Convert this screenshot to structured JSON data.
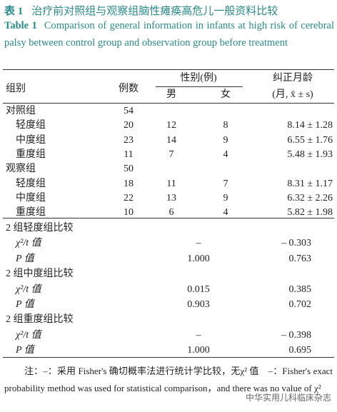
{
  "header": {
    "label": "表 1",
    "title": "治疗前对照组与观察组脑性瘫痪高危儿一般资料比较",
    "english_label": "Table 1",
    "english_title": "Comparison of general information in infants at high risk of cerebral palsy between control group and observation group before treatment"
  },
  "table": {
    "columns": {
      "group": "组别",
      "n": "例数",
      "sex": "性别(例)",
      "male": "男",
      "female": "女",
      "age": "纠正月龄",
      "age_unit": "(月, x̄ ± s)"
    },
    "groups": [
      {
        "name": "对照组",
        "n": 54,
        "subgroups": [
          {
            "name": "轻度组",
            "n": 20,
            "male": 12,
            "female": 8,
            "age": "8.14 ± 1.28"
          },
          {
            "name": "中度组",
            "n": 23,
            "male": 14,
            "female": 9,
            "age": "6.55 ± 1.76"
          },
          {
            "name": "重度组",
            "n": 11,
            "male": 7,
            "female": 4,
            "age": "5.48 ± 1.93"
          }
        ]
      },
      {
        "name": "观察组",
        "n": 50,
        "subgroups": [
          {
            "name": "轻度组",
            "n": 18,
            "male": 11,
            "female": 7,
            "age": "8.31 ± 1.17"
          },
          {
            "name": "中度组",
            "n": 22,
            "male": 13,
            "female": 9,
            "age": "6.32 ± 2.26"
          },
          {
            "name": "重度组",
            "n": 10,
            "male": 6,
            "female": 4,
            "age": "5.82 ± 1.98"
          }
        ]
      }
    ],
    "comparisons": [
      {
        "title": "2 组轻度组比较",
        "rows": [
          {
            "label": "χ²/t 值",
            "sex": "–",
            "age": "– 0.303"
          },
          {
            "label": "P 值",
            "sex": "1.000",
            "age": "0.763"
          }
        ]
      },
      {
        "title": "2 组中度组比较",
        "rows": [
          {
            "label": "χ²/t 值",
            "sex": "0.015",
            "age": "0.385"
          },
          {
            "label": "P 值",
            "sex": "0.903",
            "age": "0.702"
          }
        ]
      },
      {
        "title": "2 组重度组比较",
        "rows": [
          {
            "label": "χ²/t 值",
            "sex": "–",
            "age": "– 0.398"
          },
          {
            "label": "P 值",
            "sex": "1.000",
            "age": "0.695"
          }
        ]
      }
    ]
  },
  "note": "注：–：采用 Fisher's 确切概率法进行统计学比较，无χ² 值　–：Fisher's exact probability method was used for statistical comparison，and there was no value of χ²",
  "watermark": "中华实用儿科临床杂志"
}
